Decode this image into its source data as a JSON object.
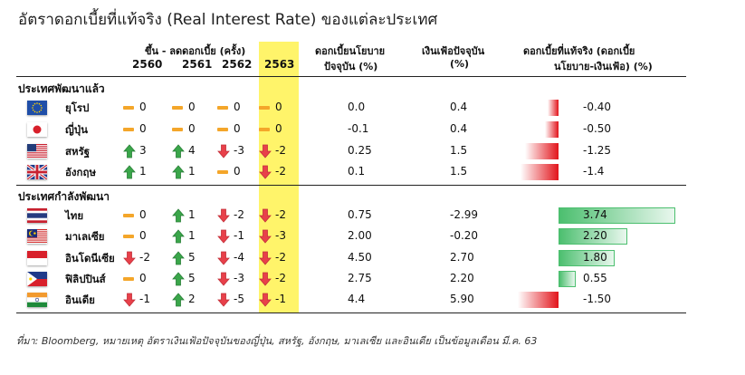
{
  "title": "อัตราดอกเบี้ยที่แท้จริง (Real Interest Rate) ของแต่ละประเทศ",
  "headers": {
    "change_group": "ขึ้น - ลดดอกเบี้ย (ครั้ง)",
    "policy_rate_1": "ดอกเบี้ยนโยบาย",
    "policy_rate_2": "ปัจจุบัน (%)",
    "inflation_1": "เงินเฟ้อปัจจุบัน",
    "inflation_2": "(%)",
    "real_rate_1": "ดอกเบี้ยที่แท้จริง (ดอกเบี้ย",
    "real_rate_2": "นโยบาย-เงินเฟ้อ) (%)",
    "years": [
      "2560",
      "2561",
      "2562",
      "2563"
    ]
  },
  "sections": {
    "developed": "ประเทศพัฒนาแล้ว",
    "developing": "ประเทศกำลังพัฒนา"
  },
  "rows": [
    {
      "country": "ยุโรป",
      "flag": "eu-flag",
      "changes": [
        {
          "dir": "flat",
          "v": "0"
        },
        {
          "dir": "flat",
          "v": "0"
        },
        {
          "dir": "flat",
          "v": "0"
        },
        {
          "dir": "flat",
          "v": "0"
        }
      ],
      "policy": "0.0",
      "inflation": "0.4",
      "real": "-0.40",
      "real_value": -0.4
    },
    {
      "country": "ญี่ปุ่น",
      "flag": "japan-flag",
      "changes": [
        {
          "dir": "flat",
          "v": "0"
        },
        {
          "dir": "flat",
          "v": "0"
        },
        {
          "dir": "flat",
          "v": "0"
        },
        {
          "dir": "flat",
          "v": "0"
        }
      ],
      "policy": "-0.1",
      "inflation": "0.4",
      "real": "-0.50",
      "real_value": -0.5
    },
    {
      "country": "สหรัฐ",
      "flag": "us-flag",
      "changes": [
        {
          "dir": "up",
          "v": "3"
        },
        {
          "dir": "up",
          "v": "4"
        },
        {
          "dir": "down",
          "v": "-3"
        },
        {
          "dir": "down",
          "v": "-2"
        }
      ],
      "policy": "0.25",
      "inflation": "1.5",
      "real": "-1.25",
      "real_value": -1.25
    },
    {
      "country": "อังกฤษ",
      "flag": "uk-flag",
      "changes": [
        {
          "dir": "up",
          "v": "1"
        },
        {
          "dir": "up",
          "v": "1"
        },
        {
          "dir": "flat",
          "v": "0"
        },
        {
          "dir": "down",
          "v": "-2"
        }
      ],
      "policy": "0.1",
      "inflation": "1.5",
      "real": "-1.4",
      "real_value": -1.4
    },
    {
      "country": "ไทย",
      "flag": "thailand-flag",
      "changes": [
        {
          "dir": "flat",
          "v": "0"
        },
        {
          "dir": "up",
          "v": "1"
        },
        {
          "dir": "down",
          "v": "-2"
        },
        {
          "dir": "down",
          "v": "-2"
        }
      ],
      "policy": "0.75",
      "inflation": "-2.99",
      "real": "3.74",
      "real_value": 3.74
    },
    {
      "country": "มาเลเซีย",
      "flag": "malaysia-flag",
      "changes": [
        {
          "dir": "flat",
          "v": "0"
        },
        {
          "dir": "up",
          "v": "1"
        },
        {
          "dir": "down",
          "v": "-1"
        },
        {
          "dir": "down",
          "v": "-3"
        }
      ],
      "policy": "2.00",
      "inflation": "-0.20",
      "real": "2.20",
      "real_value": 2.2
    },
    {
      "country": "อินโดนีเซีย",
      "flag": "indonesia-flag",
      "changes": [
        {
          "dir": "down",
          "v": "-2"
        },
        {
          "dir": "up",
          "v": "5"
        },
        {
          "dir": "down",
          "v": "-4"
        },
        {
          "dir": "down",
          "v": "-2"
        }
      ],
      "policy": "4.50",
      "inflation": "2.70",
      "real": "1.80",
      "real_value": 1.8
    },
    {
      "country": "ฟิลิปปินส์",
      "flag": "philippines-flag",
      "changes": [
        {
          "dir": "flat",
          "v": "0"
        },
        {
          "dir": "up",
          "v": "5"
        },
        {
          "dir": "down",
          "v": "-3"
        },
        {
          "dir": "down",
          "v": "-2"
        }
      ],
      "policy": "2.75",
      "inflation": "2.20",
      "real": "0.55",
      "real_value": 0.55
    },
    {
      "country": "อินเดีย",
      "flag": "india-flag",
      "changes": [
        {
          "dir": "down",
          "v": "-1"
        },
        {
          "dir": "up",
          "v": "2"
        },
        {
          "dir": "down",
          "v": "-5"
        },
        {
          "dir": "down",
          "v": "-1"
        }
      ],
      "policy": "4.4",
      "inflation": "5.90",
      "real": "-1.50",
      "real_value": -1.5
    }
  ],
  "colors": {
    "up": "#3aa64a",
    "down": "#e8404a",
    "flat": "#f4a62a",
    "highlight": "#fff46a",
    "negative_bar": "#e2141b",
    "positive_bar": "#4cbf6f"
  },
  "note": "ที่มา: Bloomberg, หมายเหตุ อัตราเงินเฟ้อปัจจุบันของญี่ปุ่น, สหรัฐ, อังกฤษ, มาเลเซีย และอินเดีย เป็นข้อมูลเดือน มี.ค. 63"
}
